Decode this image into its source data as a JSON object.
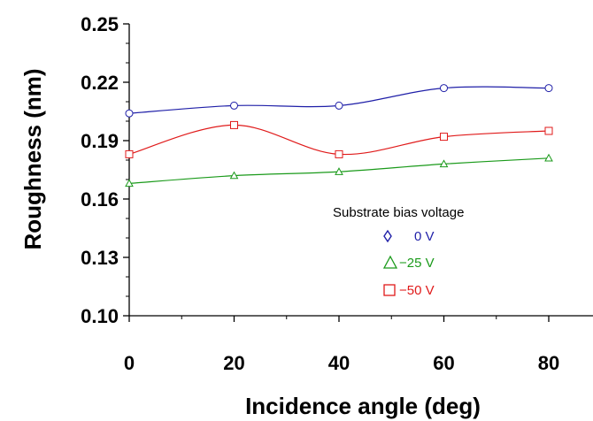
{
  "chart_data": {
    "type": "line",
    "xlabel": "Incidence angle (deg)",
    "ylabel": "Roughness (nm)",
    "xlim": [
      0,
      80
    ],
    "ylim": [
      0.1,
      0.25
    ],
    "x_ticks": [
      "0",
      "20",
      "40",
      "60",
      "80"
    ],
    "y_ticks": [
      "0.10",
      "0.13",
      "0.16",
      "0.19",
      "0.22",
      "0.25"
    ],
    "grid": false,
    "x": [
      0,
      20,
      40,
      60,
      80
    ],
    "legend_title": "Substrate bias voltage",
    "legend_position": "lower-right",
    "series": [
      {
        "name": "0 V",
        "marker": "circle",
        "legend_marker": "diamond",
        "color": "#1f1fa8",
        "values": [
          0.204,
          0.208,
          0.208,
          0.217,
          0.217
        ]
      },
      {
        "name": "−25 V",
        "marker": "triangle",
        "legend_marker": "triangle",
        "color": "#1a9a1a",
        "values": [
          0.168,
          0.172,
          0.174,
          0.178,
          0.181
        ]
      },
      {
        "name": "−50 V",
        "marker": "square",
        "legend_marker": "square",
        "color": "#e01a1a",
        "values": [
          0.183,
          0.198,
          0.183,
          0.192,
          0.195
        ]
      }
    ]
  }
}
